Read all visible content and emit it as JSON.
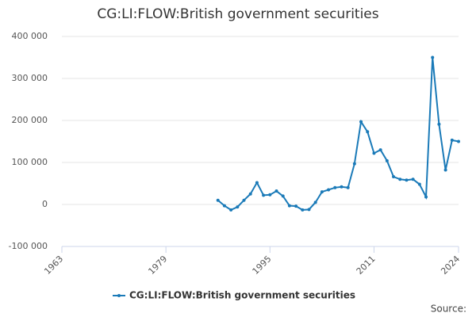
{
  "chart_data": {
    "type": "line",
    "title": "CG:LI:FLOW:British government securities",
    "x": [
      1987,
      1988,
      1989,
      1990,
      1991,
      1992,
      1993,
      1994,
      1995,
      1996,
      1997,
      1998,
      1999,
      2000,
      2001,
      2002,
      2003,
      2004,
      2005,
      2006,
      2007,
      2008,
      2009,
      2010,
      2011,
      2012,
      2013,
      2014,
      2015,
      2016,
      2017,
      2018,
      2019,
      2020,
      2021,
      2022,
      2023,
      2024
    ],
    "series": [
      {
        "name": "CG:LI:FLOW:British government securities",
        "color": "#1a7ab8",
        "values": [
          10000,
          -3000,
          -13000,
          -6000,
          10000,
          25000,
          52000,
          22000,
          23000,
          32000,
          20000,
          -3000,
          -4000,
          -13000,
          -12000,
          5000,
          30000,
          35000,
          40000,
          42000,
          40000,
          97000,
          197000,
          173000,
          122000,
          130000,
          104000,
          66000,
          60000,
          58000,
          60000,
          48000,
          18000,
          350000,
          191000,
          82000,
          153000,
          150000
        ]
      }
    ],
    "xlim": [
      1963,
      2024
    ],
    "xticks": [
      1963,
      1979,
      1995,
      2011,
      2024
    ],
    "ylim": [
      -100000,
      400000
    ],
    "yticks": [
      {
        "value": -100000,
        "label": "-100 000"
      },
      0,
      {
        "value": 100000,
        "label": "100 000"
      },
      {
        "value": 200000,
        "label": "200 000"
      },
      {
        "value": 300000,
        "label": "300 000"
      },
      {
        "value": 400000,
        "label": "400 000"
      }
    ],
    "grid": true,
    "legend": "bottom",
    "source": "Source:"
  }
}
